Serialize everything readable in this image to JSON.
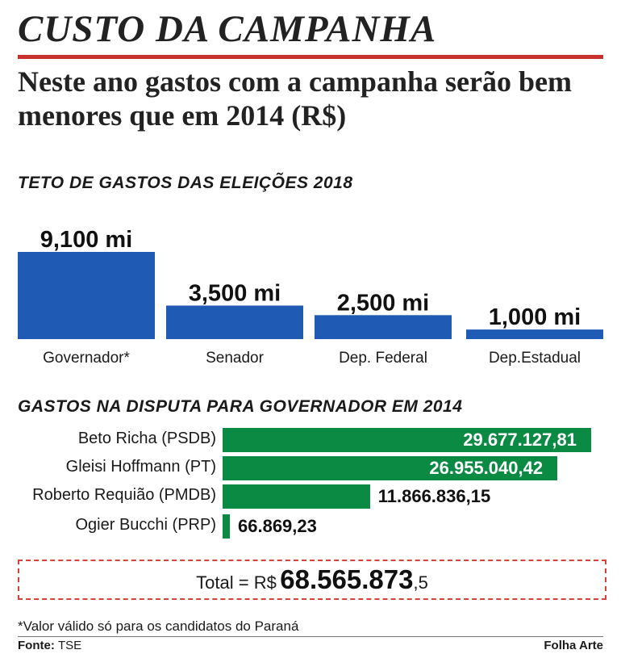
{
  "headline": "CUSTO DA CAMPANHA",
  "subheadline": "Neste ano gastos com a campanha serão bem menores que em 2014 (R$)",
  "colors": {
    "accent_rule": "#c8312b",
    "bar_blue": "#1f5bb5",
    "bar_green": "#0b8a44",
    "total_border": "#d8403a"
  },
  "chart_data": [
    {
      "type": "bar",
      "title": "TETO DE GASTOS DAS ELEIÇÕES 2018",
      "categories": [
        "Governador*",
        "Senador",
        "Dep. Federal",
        "Dep.Estadual"
      ],
      "values": [
        9100,
        3500,
        2500,
        1000
      ],
      "value_labels": [
        "9,100 mi",
        "3,500 mi",
        "2,500 mi",
        "1,000 mi"
      ],
      "xlabel": "",
      "ylabel": "",
      "grid": false
    },
    {
      "type": "bar",
      "orientation": "horizontal",
      "title": "GASTOS NA DISPUTA PARA GOVERNADOR EM 2014",
      "categories": [
        "Beto Richa (PSDB)",
        "Gleisi Hoffmann (PT)",
        "Roberto Requião (PMDB)",
        "Ogier Bucchi (PRP)"
      ],
      "values": [
        29677127.81,
        26955040.42,
        11866836.15,
        66869.23
      ],
      "value_labels": [
        "29.677.127,81",
        "26.955.040,42",
        "11.866.836,15",
        "66.869,23"
      ],
      "xlabel": "",
      "ylabel": "",
      "grid": false
    }
  ],
  "total": {
    "prefix": "Total = R$",
    "amount": "68.565.873",
    "cents": ",5"
  },
  "footnote": "*Valor válido só para os candidatos do Paraná",
  "source": {
    "label": "Fonte:",
    "value": "TSE"
  },
  "credit": "Folha Arte"
}
